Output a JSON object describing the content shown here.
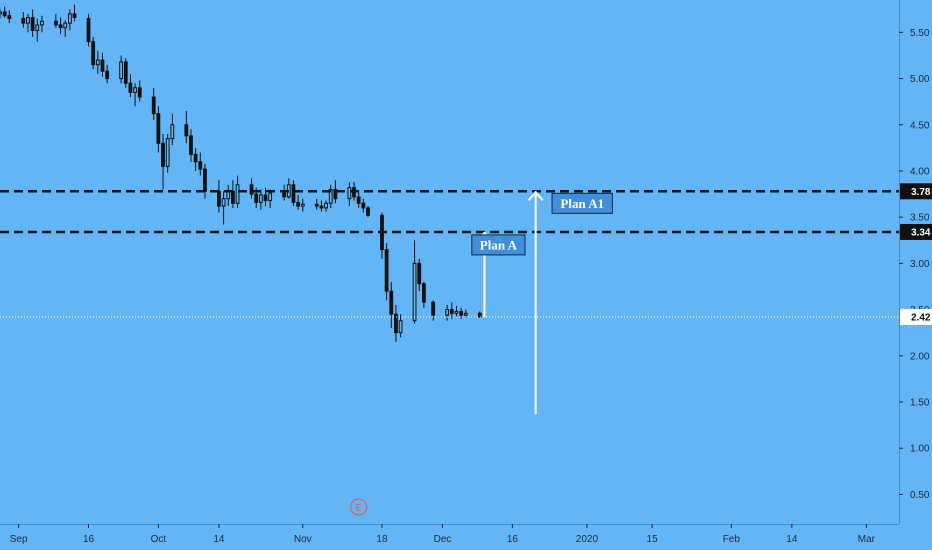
{
  "colors": {
    "background": "#64b5f6",
    "candle": "#111111",
    "arrow": "#ffffff",
    "level_line": "#111111",
    "current_line": "#ffffff",
    "label_box": "#3f8fd9",
    "earnings_marker": "#e05a3a"
  },
  "chart_data": {
    "type": "candlestick",
    "y_axis": {
      "position": "right",
      "ylim": [
        0.18,
        5.85
      ],
      "ticks": [
        "0.50",
        "1.00",
        "1.50",
        "2.00",
        "2.50",
        "3.00",
        "3.50",
        "4.00",
        "4.50",
        "5.00",
        "5.50"
      ]
    },
    "x_axis": {
      "xlim": [
        "2019-08-28",
        "2020-03-08"
      ],
      "ticks": [
        {
          "date": "2019-09-01",
          "label": "Sep"
        },
        {
          "date": "2019-09-16",
          "label": "16"
        },
        {
          "date": "2019-10-01",
          "label": "Oct"
        },
        {
          "date": "2019-10-14",
          "label": "14"
        },
        {
          "date": "2019-11-01",
          "label": "Nov"
        },
        {
          "date": "2019-11-18",
          "label": "18"
        },
        {
          "date": "2019-12-01",
          "label": "Dec"
        },
        {
          "date": "2019-12-16",
          "label": "16"
        },
        {
          "date": "2020-01-01",
          "label": "2020"
        },
        {
          "date": "2020-01-15",
          "label": "15"
        },
        {
          "date": "2020-02-01",
          "label": "Feb"
        },
        {
          "date": "2020-02-14",
          "label": "14"
        },
        {
          "date": "2020-03-01",
          "label": "Mar"
        }
      ]
    },
    "price_levels": [
      {
        "value": 3.78,
        "label": "3.78",
        "style": "dashed"
      },
      {
        "value": 3.34,
        "label": "3.34",
        "style": "dashed"
      },
      {
        "value": 2.42,
        "label": "2.42",
        "style": "dotted"
      }
    ],
    "annotations": [
      {
        "text": "Plan A",
        "arrow_date": "2019-12-10",
        "arrow_from": 2.42,
        "arrow_to": 3.34,
        "label_date": "2019-12-13",
        "label_value": 3.2
      },
      {
        "text": "Plan A1",
        "arrow_date": "2019-12-21",
        "arrow_from": 1.37,
        "arrow_to": 3.78,
        "label_date": "2019-12-31",
        "label_value": 3.65
      }
    ],
    "earnings_marker": {
      "date": "2019-11-13",
      "text": "E"
    },
    "candles": [
      [
        "2019-08-28",
        5.7,
        5.75,
        5.65,
        5.72
      ],
      [
        "2019-08-29",
        5.72,
        5.78,
        5.66,
        5.68
      ],
      [
        "2019-08-30",
        5.68,
        5.74,
        5.6,
        5.65
      ],
      [
        "2019-09-02",
        5.65,
        5.72,
        5.55,
        5.6
      ],
      [
        "2019-09-03",
        5.6,
        5.7,
        5.5,
        5.66
      ],
      [
        "2019-09-04",
        5.66,
        5.75,
        5.45,
        5.52
      ],
      [
        "2019-09-05",
        5.52,
        5.65,
        5.4,
        5.58
      ],
      [
        "2019-09-06",
        5.58,
        5.68,
        5.5,
        5.62
      ],
      [
        "2019-09-09",
        5.62,
        5.7,
        5.55,
        5.58
      ],
      [
        "2019-09-10",
        5.58,
        5.66,
        5.48,
        5.55
      ],
      [
        "2019-09-11",
        5.55,
        5.63,
        5.45,
        5.6
      ],
      [
        "2019-09-12",
        5.6,
        5.75,
        5.52,
        5.7
      ],
      [
        "2019-09-13",
        5.7,
        5.8,
        5.62,
        5.66
      ],
      [
        "2019-09-16",
        5.65,
        5.7,
        5.35,
        5.4
      ],
      [
        "2019-09-17",
        5.4,
        5.45,
        5.1,
        5.15
      ],
      [
        "2019-09-18",
        5.15,
        5.3,
        5.05,
        5.2
      ],
      [
        "2019-09-19",
        5.2,
        5.28,
        5.02,
        5.08
      ],
      [
        "2019-09-20",
        5.08,
        5.15,
        4.95,
        5.0
      ],
      [
        "2019-09-23",
        5.0,
        5.25,
        4.95,
        5.18
      ],
      [
        "2019-09-24",
        5.18,
        5.22,
        4.9,
        4.95
      ],
      [
        "2019-09-25",
        4.95,
        5.05,
        4.8,
        4.85
      ],
      [
        "2019-09-26",
        4.85,
        4.95,
        4.7,
        4.9
      ],
      [
        "2019-09-27",
        4.9,
        4.98,
        4.75,
        4.8
      ],
      [
        "2019-09-30",
        4.8,
        4.9,
        4.55,
        4.62
      ],
      [
        "2019-10-01",
        4.62,
        4.7,
        4.2,
        4.3
      ],
      [
        "2019-10-02",
        4.3,
        4.4,
        3.8,
        4.05
      ],
      [
        "2019-10-03",
        4.05,
        4.4,
        3.98,
        4.35
      ],
      [
        "2019-10-04",
        4.35,
        4.62,
        4.28,
        4.5
      ],
      [
        "2019-10-07",
        4.5,
        4.65,
        4.3,
        4.38
      ],
      [
        "2019-10-08",
        4.38,
        4.45,
        4.1,
        4.18
      ],
      [
        "2019-10-09",
        4.18,
        4.25,
        4.0,
        4.1
      ],
      [
        "2019-10-10",
        4.1,
        4.2,
        3.95,
        4.02
      ],
      [
        "2019-10-11",
        4.02,
        4.08,
        3.7,
        3.78
      ],
      [
        "2019-10-14",
        3.78,
        3.9,
        3.55,
        3.62
      ],
      [
        "2019-10-15",
        3.62,
        3.78,
        3.42,
        3.7
      ],
      [
        "2019-10-16",
        3.7,
        3.85,
        3.62,
        3.78
      ],
      [
        "2019-10-17",
        3.78,
        3.9,
        3.6,
        3.65
      ],
      [
        "2019-10-18",
        3.65,
        3.95,
        3.6,
        3.85
      ],
      [
        "2019-10-21",
        3.85,
        3.92,
        3.7,
        3.75
      ],
      [
        "2019-10-22",
        3.75,
        3.82,
        3.6,
        3.66
      ],
      [
        "2019-10-23",
        3.66,
        3.8,
        3.58,
        3.74
      ],
      [
        "2019-10-24",
        3.74,
        3.82,
        3.62,
        3.68
      ],
      [
        "2019-10-25",
        3.68,
        3.8,
        3.6,
        3.76
      ],
      [
        "2019-10-28",
        3.76,
        3.85,
        3.68,
        3.72
      ],
      [
        "2019-10-29",
        3.72,
        3.92,
        3.7,
        3.85
      ],
      [
        "2019-10-30",
        3.85,
        3.9,
        3.62,
        3.66
      ],
      [
        "2019-10-31",
        3.66,
        3.74,
        3.58,
        3.62
      ],
      [
        "2019-11-01",
        3.62,
        3.7,
        3.56,
        3.64
      ],
      [
        "2019-11-04",
        3.64,
        3.7,
        3.58,
        3.62
      ],
      [
        "2019-11-05",
        3.62,
        3.68,
        3.56,
        3.6
      ],
      [
        "2019-11-06",
        3.6,
        3.68,
        3.56,
        3.65
      ],
      [
        "2019-11-07",
        3.65,
        3.85,
        3.6,
        3.8
      ],
      [
        "2019-11-08",
        3.8,
        3.9,
        3.65,
        3.7
      ],
      [
        "2019-11-11",
        3.7,
        3.88,
        3.62,
        3.82
      ],
      [
        "2019-11-12",
        3.82,
        3.88,
        3.68,
        3.72
      ],
      [
        "2019-11-13",
        3.72,
        3.78,
        3.6,
        3.65
      ],
      [
        "2019-11-14",
        3.65,
        3.7,
        3.55,
        3.6
      ],
      [
        "2019-11-15",
        3.6,
        3.62,
        3.5,
        3.52
      ],
      [
        "2019-11-18",
        3.52,
        3.55,
        3.05,
        3.15
      ],
      [
        "2019-11-19",
        3.15,
        3.22,
        2.6,
        2.7
      ],
      [
        "2019-11-20",
        2.7,
        2.8,
        2.3,
        2.45
      ],
      [
        "2019-11-21",
        2.45,
        2.55,
        2.15,
        2.25
      ],
      [
        "2019-11-22",
        2.25,
        2.45,
        2.2,
        2.38
      ],
      [
        "2019-11-25",
        2.38,
        3.25,
        2.35,
        3.0
      ],
      [
        "2019-11-26",
        3.0,
        3.05,
        2.7,
        2.78
      ],
      [
        "2019-11-27",
        2.78,
        2.8,
        2.52,
        2.58
      ],
      [
        "2019-11-29",
        2.58,
        2.6,
        2.38,
        2.44
      ],
      [
        "2019-12-02",
        2.44,
        2.55,
        2.38,
        2.5
      ],
      [
        "2019-12-03",
        2.5,
        2.58,
        2.4,
        2.46
      ],
      [
        "2019-12-04",
        2.46,
        2.54,
        2.42,
        2.48
      ],
      [
        "2019-12-05",
        2.48,
        2.52,
        2.4,
        2.44
      ],
      [
        "2019-12-06",
        2.44,
        2.5,
        2.41,
        2.46
      ],
      [
        "2019-12-09",
        2.46,
        2.48,
        2.41,
        2.42
      ]
    ]
  }
}
